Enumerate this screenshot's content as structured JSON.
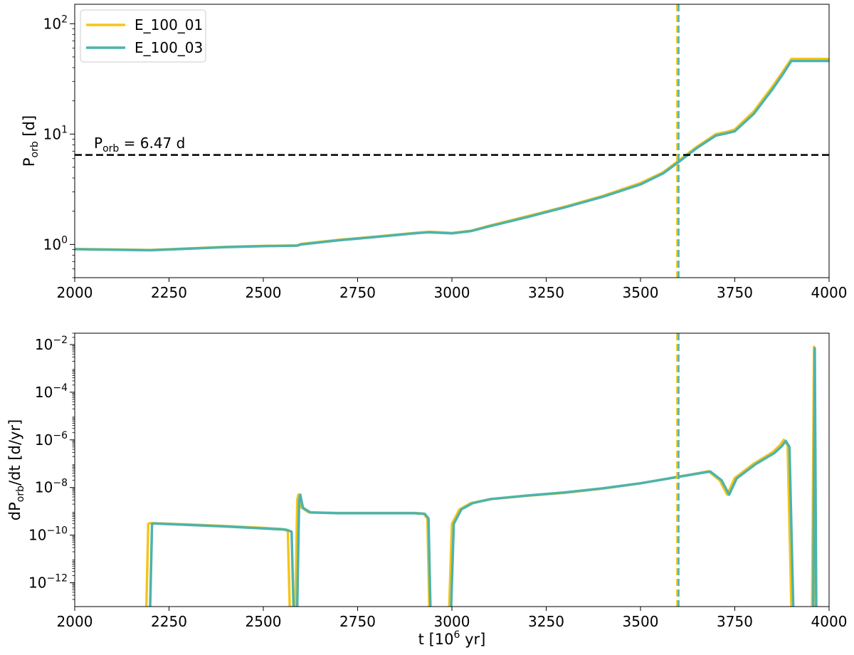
{
  "colors": {
    "E_100_01": "#f5c518",
    "E_100_03": "#4db3ac",
    "reference": "#000000"
  },
  "chart_data": [
    {
      "type": "line",
      "ylabel_main": "P",
      "ylabel_sub": "orb",
      "ylabel_rest": " [d]",
      "y_scale": "log",
      "xlim": [
        2000,
        4000
      ],
      "ylim": [
        0.5,
        150
      ],
      "x_ticks": [
        "2000",
        "2250",
        "2500",
        "2750",
        "3000",
        "3250",
        "3500",
        "3750",
        "4000"
      ],
      "y_ticks": [
        {
          "value": 1,
          "base": "10",
          "exp": "0"
        },
        {
          "value": 10,
          "base": "10",
          "exp": "1"
        },
        {
          "value": 100,
          "base": "10",
          "exp": "2"
        }
      ],
      "legend": {
        "position": "top-left",
        "entries": [
          "E_100_01",
          "E_100_03"
        ]
      },
      "hline": {
        "y": 6.47,
        "style": "dashed",
        "label_main": "P",
        "label_sub": "orb",
        "label_rest": " = 6.47 d"
      },
      "vlines": [
        {
          "x": 3597,
          "series": "E_100_01",
          "style": "dashed"
        },
        {
          "x": 3601,
          "series": "E_100_03",
          "style": "dashed"
        }
      ],
      "series": [
        {
          "name": "E_100_01",
          "x": [
            2000,
            2100,
            2200,
            2300,
            2400,
            2500,
            2590,
            2600,
            2700,
            2800,
            2900,
            2940,
            3000,
            3050,
            3100,
            3200,
            3300,
            3400,
            3500,
            3560,
            3600,
            3650,
            3700,
            3730,
            3750,
            3800,
            3850,
            3880,
            3900,
            4000
          ],
          "y": [
            0.91,
            0.9,
            0.89,
            0.92,
            0.95,
            0.97,
            0.98,
            1.01,
            1.1,
            1.18,
            1.27,
            1.3,
            1.27,
            1.33,
            1.48,
            1.8,
            2.2,
            2.75,
            3.6,
            4.5,
            5.7,
            7.7,
            10.0,
            10.5,
            11.0,
            16.0,
            27.0,
            38.0,
            48.0,
            48.0
          ]
        },
        {
          "name": "E_100_03",
          "x": [
            2000,
            2100,
            2200,
            2300,
            2400,
            2500,
            2590,
            2600,
            2700,
            2800,
            2900,
            2940,
            3000,
            3050,
            3100,
            3200,
            3300,
            3400,
            3500,
            3560,
            3600,
            3650,
            3700,
            3730,
            3750,
            3800,
            3850,
            3880,
            3900,
            4000
          ],
          "y": [
            0.905,
            0.895,
            0.885,
            0.915,
            0.945,
            0.965,
            0.975,
            1.0,
            1.09,
            1.17,
            1.26,
            1.29,
            1.26,
            1.32,
            1.46,
            1.77,
            2.17,
            2.7,
            3.5,
            4.4,
            5.55,
            7.5,
            9.7,
            10.2,
            10.6,
            15.2,
            25.5,
            36.0,
            46.0,
            46.0
          ]
        }
      ]
    },
    {
      "type": "line",
      "xlabel_main": "t [10",
      "xlabel_sup": "6",
      "xlabel_rest": " yr]",
      "ylabel_pre": "dP",
      "ylabel_sub": "orb",
      "ylabel_post": "/dt [d/yr]",
      "y_scale": "log",
      "xlim": [
        2000,
        4000
      ],
      "ylim": [
        1e-13,
        0.03
      ],
      "x_ticks": [
        "2000",
        "2250",
        "2500",
        "2750",
        "3000",
        "3250",
        "3500",
        "3750",
        "4000"
      ],
      "y_ticks": [
        {
          "value": 1e-12,
          "base": "10",
          "exp": "−12"
        },
        {
          "value": 1e-10,
          "base": "10",
          "exp": "−10"
        },
        {
          "value": 1e-08,
          "base": "10",
          "exp": "−8"
        },
        {
          "value": 1e-06,
          "base": "10",
          "exp": "−6"
        },
        {
          "value": 0.0001,
          "base": "10",
          "exp": "−4"
        },
        {
          "value": 0.01,
          "base": "10",
          "exp": "−2"
        }
      ],
      "vlines": [
        {
          "x": 3597,
          "series": "E_100_01",
          "style": "dashed"
        },
        {
          "x": 3601,
          "series": "E_100_03",
          "style": "dashed"
        }
      ],
      "series": [
        {
          "name": "E_100_01",
          "segments": [
            {
              "x": [
                2190,
                2195,
                2200,
                2300,
                2400,
                2500,
                2550,
                2565,
                2570
              ],
              "y": [
                1e-14,
                3e-10,
                3.2e-10,
                2.8e-10,
                2.4e-10,
                2e-10,
                1.8e-10,
                1.5e-10,
                1e-14
              ]
            },
            {
              "x": [
                2585,
                2590,
                2593,
                2600,
                2620,
                2700,
                2800,
                2900,
                2925,
                2935,
                2940
              ],
              "y": [
                1e-14,
                3e-09,
                5e-09,
                1.5e-09,
                9e-10,
                8.5e-10,
                8.5e-10,
                8.5e-10,
                8e-10,
                5e-10,
                1e-14
              ]
            },
            {
              "x": [
                2993,
                3000,
                3020,
                3050,
                3100,
                3200,
                3300,
                3400,
                3500,
                3600,
                3680,
                3710,
                3730,
                3750,
                3800,
                3850,
                3870,
                3880,
                3890,
                3900
              ],
              "y": [
                1e-14,
                3e-10,
                1.2e-09,
                2.2e-09,
                3.2e-09,
                4.5e-09,
                6e-09,
                9e-09,
                1.5e-08,
                2.8e-08,
                4.8e-08,
                2e-08,
                5e-09,
                2.5e-08,
                1e-07,
                3e-07,
                6e-07,
                1e-06,
                6e-07,
                1e-14
              ]
            },
            {
              "x": [
                3955,
                3960,
                3965
              ],
              "y": [
                1e-14,
                0.008,
                1e-14
              ]
            }
          ]
        },
        {
          "name": "E_100_03",
          "segments": [
            {
              "x": [
                2200,
                2205,
                2210,
                2300,
                2400,
                2500,
                2560,
                2575,
                2580
              ],
              "y": [
                1e-14,
                3e-10,
                3.1e-10,
                2.7e-10,
                2.3e-10,
                1.9e-10,
                1.7e-10,
                1.4e-10,
                1e-14
              ]
            },
            {
              "x": [
                2590,
                2595,
                2598,
                2605,
                2625,
                2700,
                2800,
                2900,
                2928,
                2938,
                2943
              ],
              "y": [
                1e-14,
                3e-09,
                5e-09,
                1.4e-09,
                9e-10,
                8.3e-10,
                8.3e-10,
                8.3e-10,
                7.8e-10,
                5e-10,
                1e-14
              ]
            },
            {
              "x": [
                2998,
                3005,
                3025,
                3055,
                3105,
                3200,
                3300,
                3400,
                3500,
                3600,
                3685,
                3715,
                3735,
                3755,
                3805,
                3855,
                3875,
                3885,
                3895,
                3905
              ],
              "y": [
                1e-14,
                3e-10,
                1.2e-09,
                2.2e-09,
                3.3e-09,
                4.6e-09,
                6.2e-09,
                9.2e-09,
                1.5e-08,
                2.8e-08,
                4.7e-08,
                2e-08,
                5e-09,
                2.4e-08,
                9.5e-08,
                2.8e-07,
                5.5e-07,
                9e-07,
                5e-07,
                1e-14
              ]
            },
            {
              "x": [
                3958,
                3962,
                3966
              ],
              "y": [
                1e-14,
                0.007,
                1e-14
              ]
            }
          ]
        }
      ]
    }
  ]
}
